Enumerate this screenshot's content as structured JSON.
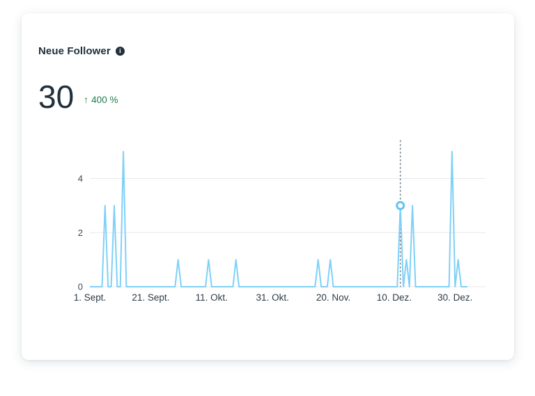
{
  "card": {
    "title": "Neue Follower",
    "info_glyph": "i",
    "metric": {
      "value": "30",
      "trend_arrow": "↑",
      "trend_value": "400 %"
    }
  },
  "colors": {
    "line": "#7fd0f7",
    "marker_ring": "#63c4f2",
    "trend_green": "#1e7d4e",
    "text_dark": "#20303c",
    "gridline": "#e6e8ea"
  },
  "chart_data": {
    "type": "line",
    "title": "Neue Follower",
    "xlabel": "",
    "ylabel": "",
    "x_start_label": "1. Sept.",
    "x_tick_labels": [
      "1. Sept.",
      "21. Sept.",
      "11. Okt.",
      "31. Okt.",
      "20. Nov.",
      "10. Dez.",
      "30. Dez."
    ],
    "x_tick_day_indices": [
      0,
      20,
      40,
      60,
      80,
      100,
      120
    ],
    "x_domain_days": 130,
    "series_days": 124,
    "y_ticks": [
      0,
      2,
      4
    ],
    "ylim": [
      0,
      5.3
    ],
    "grid": true,
    "legend": false,
    "baseline_value": 0,
    "spikes": [
      {
        "day": 5,
        "value": 3
      },
      {
        "day": 8,
        "value": 3
      },
      {
        "day": 11,
        "value": 5
      },
      {
        "day": 29,
        "value": 1
      },
      {
        "day": 39,
        "value": 1
      },
      {
        "day": 48,
        "value": 1
      },
      {
        "day": 75,
        "value": 1
      },
      {
        "day": 79,
        "value": 1
      },
      {
        "day": 102,
        "value": 3
      },
      {
        "day": 104,
        "value": 1
      },
      {
        "day": 106,
        "value": 3
      },
      {
        "day": 119,
        "value": 5
      },
      {
        "day": 121,
        "value": 1
      }
    ],
    "hover_marker": {
      "day": 102,
      "value": 3
    },
    "line_color": "#7fd0f7"
  }
}
